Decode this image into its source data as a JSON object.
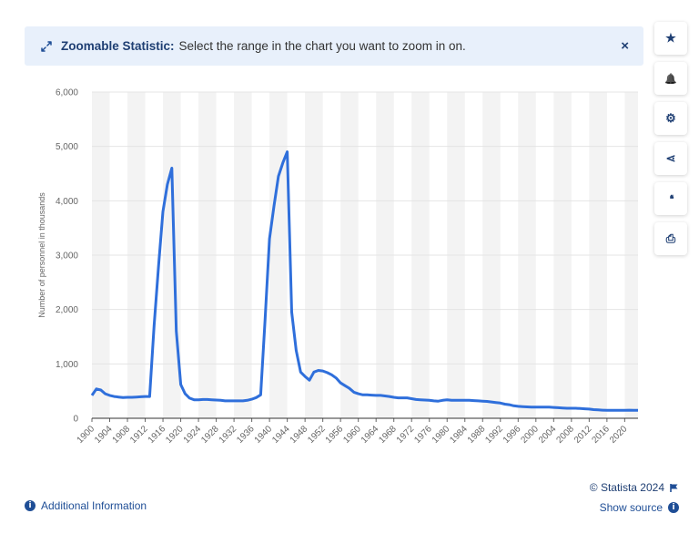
{
  "banner": {
    "title": "Zoomable Statistic:",
    "text": "Select the range in the chart you want to zoom in on.",
    "close_label": "×"
  },
  "toolbar": {
    "buttons": [
      {
        "name": "favorite",
        "icon": "star-icon",
        "glyph": "★"
      },
      {
        "name": "notifications",
        "icon": "bell-icon",
        "glyph": "🔔"
      },
      {
        "name": "settings",
        "icon": "gear-icon",
        "glyph": "⚙"
      },
      {
        "name": "share",
        "icon": "share-icon",
        "glyph": "⋖"
      },
      {
        "name": "cite",
        "icon": "quote-icon",
        "glyph": "❛❛"
      },
      {
        "name": "print",
        "icon": "printer-icon",
        "glyph": "⎙"
      }
    ]
  },
  "footer": {
    "additional_info": "Additional Information",
    "copyright": "© Statista 2024",
    "show_source": "Show source"
  },
  "colors": {
    "line": "#2f6fdb",
    "accent": "#1f4e96",
    "band": "#f3f3f3"
  },
  "chart_data": {
    "type": "line",
    "title": "",
    "xlabel": "",
    "ylabel": "Number of personnel in thousands",
    "ylim": [
      0,
      6000
    ],
    "xlim": [
      1900,
      2023
    ],
    "yticks": [
      "0",
      "1,000",
      "2,000",
      "3,000",
      "4,000",
      "5,000",
      "6,000"
    ],
    "ytick_values": [
      0,
      1000,
      2000,
      3000,
      4000,
      5000,
      6000
    ],
    "xticks": [
      "1900",
      "1904",
      "1908",
      "1912",
      "1916",
      "1920",
      "1924",
      "1928",
      "1932",
      "1936",
      "1940",
      "1944",
      "1948",
      "1952",
      "1956",
      "1960",
      "1964",
      "1968",
      "1972",
      "1976",
      "1980",
      "1984",
      "1988",
      "1992",
      "1996",
      "2000",
      "2004",
      "2008",
      "2012",
      "2016",
      "2020"
    ],
    "grid": true,
    "series": [
      {
        "name": "",
        "x": [
          1900,
          1901,
          1902,
          1903,
          1904,
          1905,
          1906,
          1907,
          1908,
          1909,
          1910,
          1911,
          1912,
          1913,
          1914,
          1915,
          1916,
          1917,
          1918,
          1919,
          1920,
          1921,
          1922,
          1923,
          1924,
          1925,
          1926,
          1927,
          1928,
          1929,
          1930,
          1931,
          1932,
          1933,
          1934,
          1935,
          1936,
          1937,
          1938,
          1939,
          1940,
          1941,
          1942,
          1943,
          1944,
          1945,
          1946,
          1947,
          1948,
          1949,
          1950,
          1951,
          1952,
          1953,
          1954,
          1955,
          1956,
          1957,
          1958,
          1959,
          1960,
          1961,
          1962,
          1963,
          1964,
          1965,
          1966,
          1967,
          1968,
          1969,
          1970,
          1971,
          1972,
          1973,
          1974,
          1975,
          1976,
          1977,
          1978,
          1979,
          1980,
          1981,
          1982,
          1983,
          1984,
          1985,
          1986,
          1987,
          1988,
          1989,
          1990,
          1991,
          1992,
          1993,
          1994,
          1995,
          1996,
          1997,
          1998,
          1999,
          2000,
          2001,
          2002,
          2003,
          2004,
          2005,
          2006,
          2007,
          2008,
          2009,
          2010,
          2011,
          2012,
          2013,
          2014,
          2015,
          2016,
          2017,
          2018,
          2019,
          2020,
          2021,
          2022,
          2023
        ],
        "values": [
          420,
          540,
          520,
          450,
          420,
          400,
          390,
          380,
          385,
          385,
          390,
          395,
          400,
          400,
          1700,
          2800,
          3800,
          4300,
          4600,
          1600,
          620,
          450,
          370,
          340,
          340,
          345,
          345,
          340,
          335,
          330,
          320,
          320,
          320,
          320,
          320,
          330,
          350,
          380,
          430,
          1800,
          3300,
          3900,
          4450,
          4700,
          4900,
          1950,
          1250,
          850,
          770,
          700,
          850,
          880,
          870,
          840,
          800,
          740,
          650,
          600,
          550,
          480,
          450,
          430,
          430,
          425,
          420,
          420,
          410,
          400,
          385,
          375,
          375,
          375,
          360,
          345,
          340,
          335,
          330,
          320,
          315,
          330,
          340,
          330,
          330,
          330,
          330,
          330,
          325,
          320,
          315,
          310,
          300,
          290,
          280,
          260,
          250,
          230,
          220,
          215,
          210,
          205,
          205,
          205,
          205,
          205,
          200,
          195,
          190,
          185,
          185,
          185,
          180,
          175,
          170,
          160,
          155,
          150,
          145,
          145,
          145,
          145,
          148,
          150,
          148,
          145
        ]
      }
    ]
  }
}
